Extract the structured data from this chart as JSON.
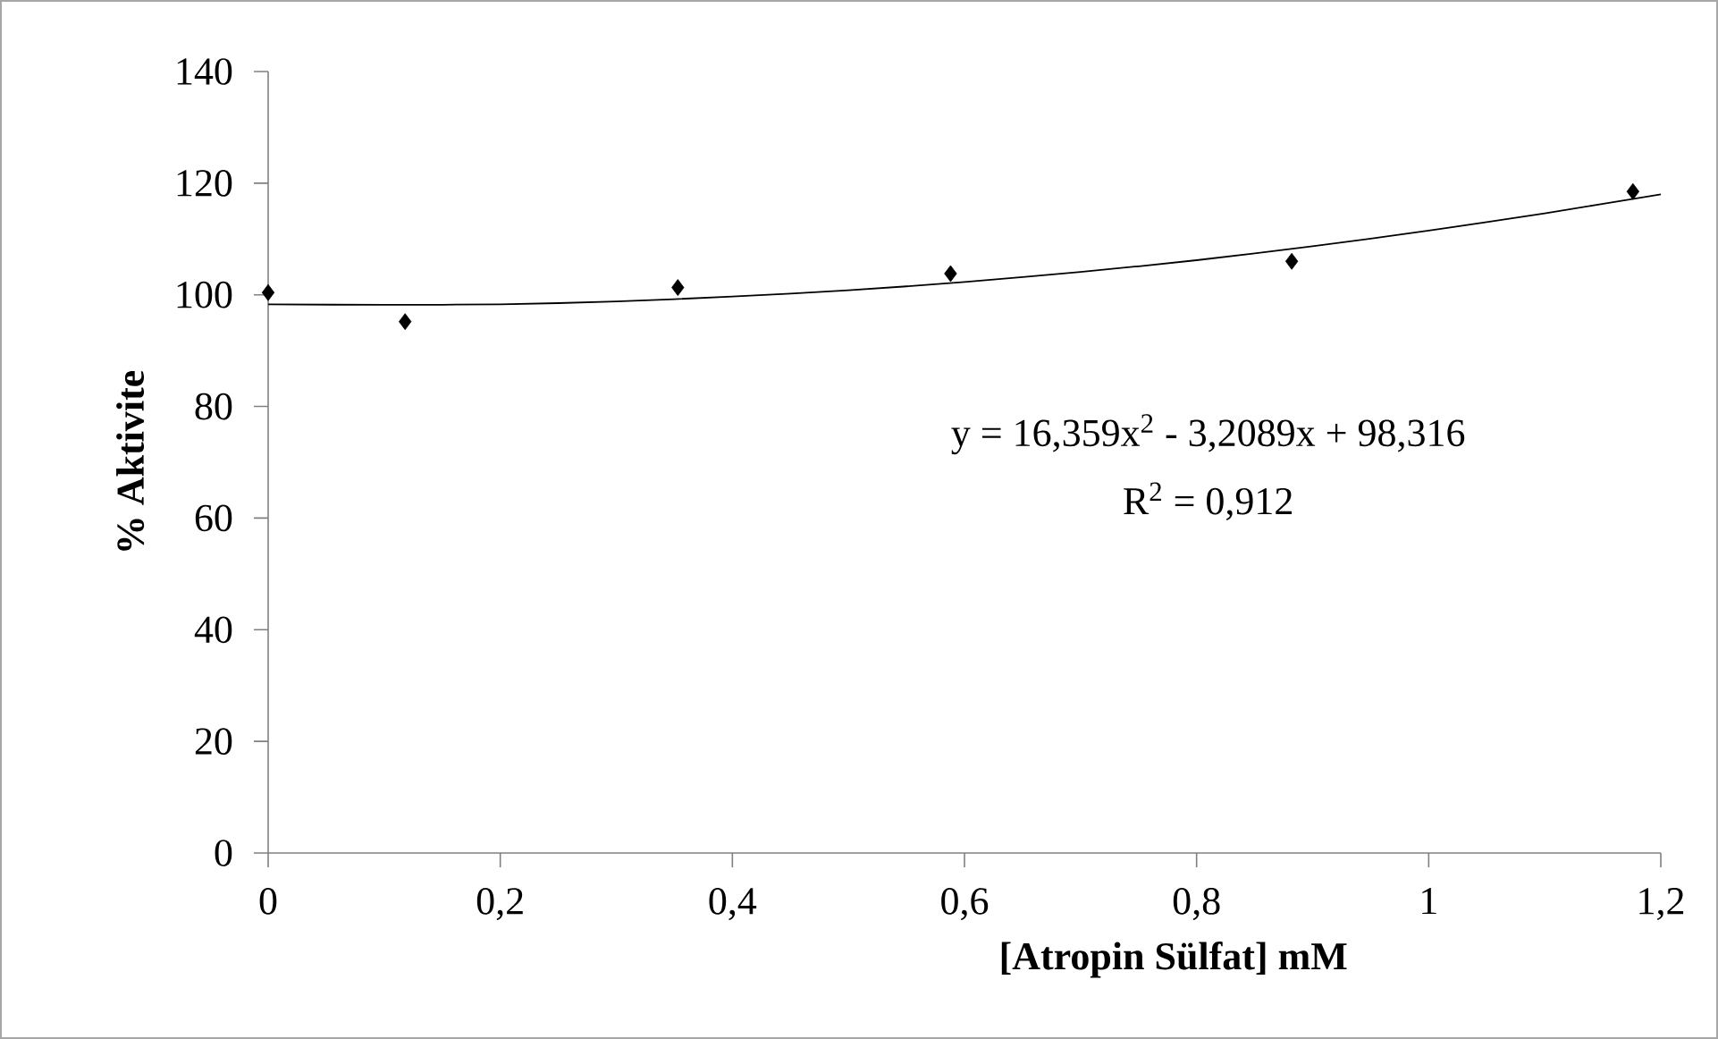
{
  "chart_data": {
    "type": "scatter",
    "xlabel": "[Atropin Sülfat] mM",
    "ylabel": "% Aktivite",
    "xlim": [
      0,
      1.2
    ],
    "ylim": [
      0,
      140
    ],
    "xticks": [
      0,
      {
        "value": 0.2,
        "label": "0,2"
      },
      {
        "value": 0.4,
        "label": "0,4"
      },
      {
        "value": 0.6,
        "label": "0,6"
      },
      {
        "value": 0.8,
        "label": "0,8"
      },
      1,
      {
        "value": 1.2,
        "label": "1,2"
      }
    ],
    "yticks": [
      0,
      20,
      40,
      60,
      80,
      100,
      120,
      140
    ],
    "grid": false,
    "annotations": [
      "y = 16,359x$^{2}$ - 3,2089x + 98,316",
      "R$^{2}$ = 0,912"
    ],
    "series": [
      {
        "color": "#000000",
        "marker": "diamond",
        "x": [
          0,
          0.118,
          0.353,
          0.588,
          0.882,
          1.176
        ],
        "values": [
          100.4,
          95.2,
          101.3,
          103.8,
          106,
          118.5
        ]
      },
      {
        "type": "line",
        "color": "#000000",
        "marker": "none",
        "line_style": "solid",
        "x": [
          0,
          0.1,
          0.2,
          0.3,
          0.4,
          0.5,
          0.6,
          0.7,
          0.8,
          0.9,
          1.0,
          1.1,
          1.2
        ],
        "values": [
          98.3,
          98.2,
          98.3,
          98.8,
          99.7,
          100.8,
          102.3,
          104.1,
          106.2,
          108.7,
          111.5,
          114.6,
          118
        ]
      }
    ]
  }
}
